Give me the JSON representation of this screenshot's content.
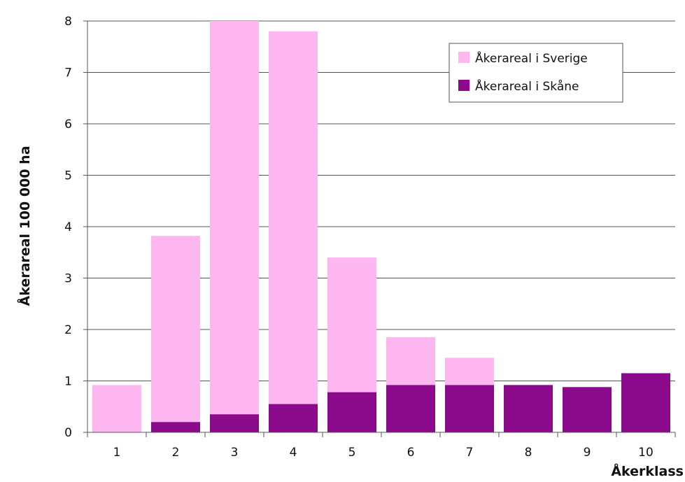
{
  "chart_data": {
    "type": "bar",
    "stacked": false,
    "overlaid": true,
    "categories": [
      "1",
      "2",
      "3",
      "4",
      "5",
      "6",
      "7",
      "8",
      "9",
      "10"
    ],
    "series": [
      {
        "name": "Åkerareal i Sverige",
        "values": [
          0.92,
          3.82,
          8.0,
          7.8,
          3.4,
          1.85,
          1.45,
          0.92,
          0.88,
          1.15
        ],
        "color": "#ffb7f2"
      },
      {
        "name": "Åkerareal i Skåne",
        "values": [
          0.0,
          0.2,
          0.35,
          0.55,
          0.78,
          0.92,
          0.92,
          0.92,
          0.88,
          1.15
        ],
        "color": "#8b0a8b"
      }
    ],
    "xlabel": "Åkerklass",
    "ylabel": "Åkerareal 100 000 ha",
    "ylim": [
      0,
      8
    ],
    "yticks": [
      "0",
      "1",
      "2",
      "3",
      "4",
      "5",
      "6",
      "7",
      "8"
    ],
    "grid": true,
    "legend_position": "top-right"
  }
}
